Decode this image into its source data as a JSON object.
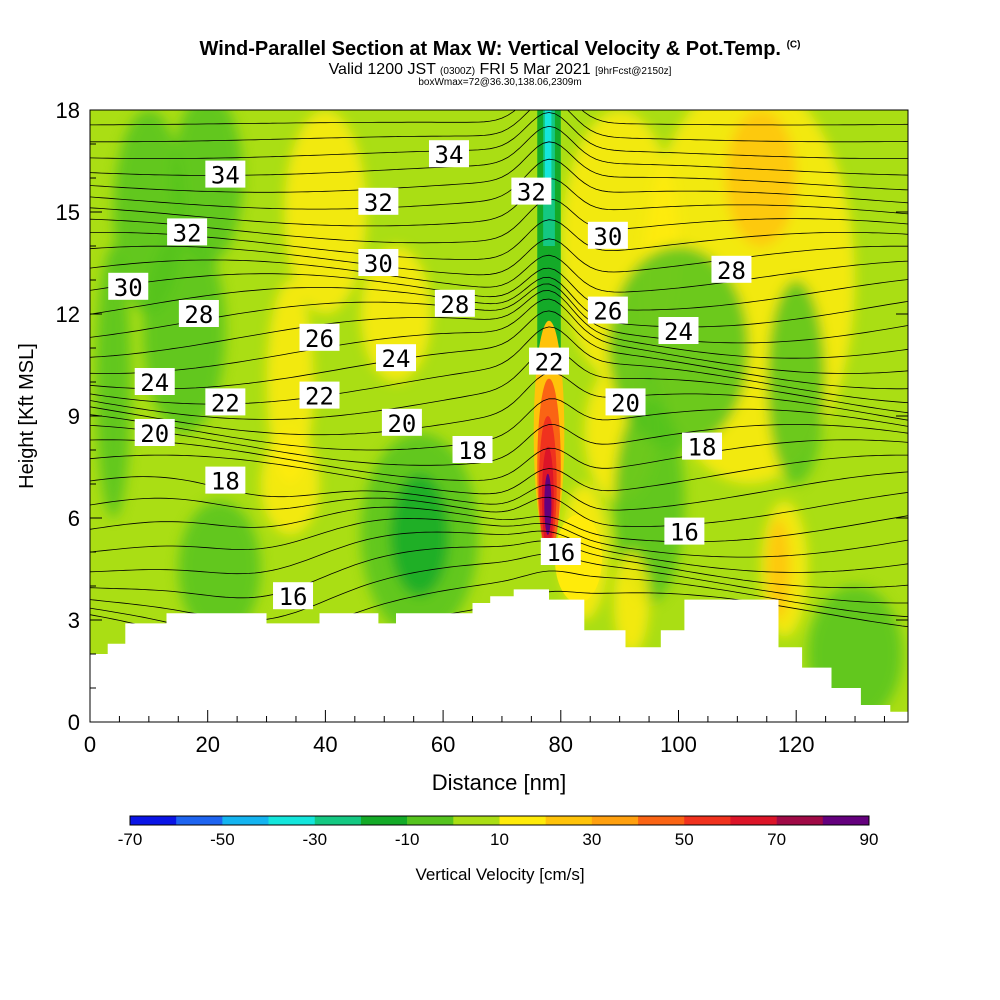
{
  "title": {
    "main": "Wind-Parallel Section at Max W: Vertical Velocity & Pot.Temp.",
    "copyright": "(C)",
    "valid_prefix": "Valid 1200 JST",
    "valid_utc": "(0300Z)",
    "valid_date": "FRI 5 Mar 2021",
    "forecast": "[9hrFcst@2150z]",
    "box_info": "boxWmax=72@36.30,138.06,2309m"
  },
  "chart_data": {
    "type": "heatmap",
    "description_axes": {
      "xlabel": "Distance [nm]",
      "ylabel": "Height [Kft MSL]",
      "xlim": [
        0,
        139
      ],
      "ylim": [
        0,
        18
      ],
      "xticks": [
        0,
        20,
        40,
        60,
        80,
        100,
        120
      ],
      "yticks": [
        0,
        3,
        6,
        9,
        12,
        15,
        18
      ]
    },
    "colorbar": {
      "label": "Vertical Velocity [cm/s]",
      "tick_labels": [
        "-70",
        "-50",
        "-30",
        "-10",
        "10",
        "30",
        "50",
        "70",
        "90"
      ],
      "levels": [
        -70,
        -60,
        -50,
        -40,
        -30,
        -20,
        -10,
        0,
        10,
        20,
        30,
        40,
        50,
        60,
        70,
        80,
        90
      ],
      "colors": [
        "#0a14e6",
        "#1e64f0",
        "#14b4f0",
        "#14e6dc",
        "#14c882",
        "#14aa28",
        "#55c31e",
        "#aade14",
        "#ffeb0a",
        "#ffc30a",
        "#ffa00f",
        "#fa6414",
        "#f0321e",
        "#dc1428",
        "#a00a46",
        "#64007d"
      ]
    },
    "potential_temperature_contours": {
      "unit_label": "",
      "levels": [
        16,
        18,
        20,
        22,
        24,
        26,
        28,
        30,
        32,
        34
      ],
      "labels": [
        {
          "text": "34",
          "x": 23,
          "y": 16.1
        },
        {
          "text": "34",
          "x": 61,
          "y": 16.7
        },
        {
          "text": "32",
          "x": 16.5,
          "y": 14.4
        },
        {
          "text": "32",
          "x": 49,
          "y": 15.3
        },
        {
          "text": "32",
          "x": 75,
          "y": 15.6
        },
        {
          "text": "30",
          "x": 6.5,
          "y": 12.8
        },
        {
          "text": "30",
          "x": 49,
          "y": 13.5
        },
        {
          "text": "30",
          "x": 88,
          "y": 14.3
        },
        {
          "text": "28",
          "x": 18.5,
          "y": 12.0
        },
        {
          "text": "28",
          "x": 62,
          "y": 12.3
        },
        {
          "text": "28",
          "x": 109,
          "y": 13.3
        },
        {
          "text": "26",
          "x": 39,
          "y": 11.3
        },
        {
          "text": "26",
          "x": 88,
          "y": 12.1
        },
        {
          "text": "24",
          "x": 11,
          "y": 10.0
        },
        {
          "text": "24",
          "x": 52,
          "y": 10.7
        },
        {
          "text": "24",
          "x": 100,
          "y": 11.5
        },
        {
          "text": "22",
          "x": 23,
          "y": 9.4
        },
        {
          "text": "22",
          "x": 39,
          "y": 9.6
        },
        {
          "text": "22",
          "x": 78,
          "y": 10.6
        },
        {
          "text": "20",
          "x": 11,
          "y": 8.5
        },
        {
          "text": "20",
          "x": 53,
          "y": 8.8
        },
        {
          "text": "20",
          "x": 91,
          "y": 9.4
        },
        {
          "text": "18",
          "x": 23,
          "y": 7.1
        },
        {
          "text": "18",
          "x": 65,
          "y": 8.0
        },
        {
          "text": "18",
          "x": 104,
          "y": 8.1
        },
        {
          "text": "16",
          "x": 34.5,
          "y": 3.7
        },
        {
          "text": "16",
          "x": 80,
          "y": 5.0
        },
        {
          "text": "16",
          "x": 101,
          "y": 5.6
        }
      ]
    },
    "terrain_height_kft": [
      [
        0,
        2.0
      ],
      [
        3,
        2.3
      ],
      [
        6,
        2.9
      ],
      [
        13,
        3.2
      ],
      [
        30,
        2.9
      ],
      [
        39,
        3.2
      ],
      [
        49,
        2.9
      ],
      [
        52,
        3.2
      ],
      [
        65,
        3.5
      ],
      [
        68,
        3.7
      ],
      [
        72,
        3.9
      ],
      [
        78,
        3.6
      ],
      [
        84,
        2.7
      ],
      [
        91,
        2.2
      ],
      [
        97,
        2.7
      ],
      [
        101,
        3.6
      ],
      [
        113,
        3.6
      ],
      [
        117,
        2.2
      ],
      [
        121,
        1.6
      ],
      [
        126,
        1.0
      ],
      [
        131,
        0.5
      ],
      [
        136,
        0.3
      ],
      [
        139,
        0.3
      ]
    ]
  }
}
